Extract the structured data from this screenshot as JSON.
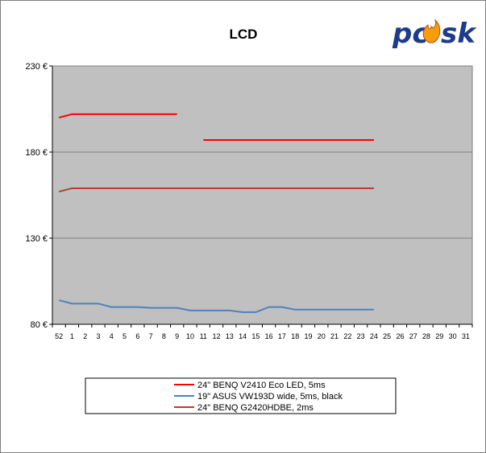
{
  "chart_data": {
    "type": "line",
    "title": "LCD",
    "xlabel": "",
    "ylabel": "",
    "categories": [
      "52",
      "1",
      "2",
      "3",
      "4",
      "5",
      "6",
      "7",
      "8",
      "9",
      "10",
      "11",
      "12",
      "13",
      "14",
      "15",
      "16",
      "17",
      "18",
      "19",
      "20",
      "21",
      "22",
      "23",
      "24",
      "25",
      "26",
      "27",
      "28",
      "29",
      "30",
      "31"
    ],
    "ylim": [
      80,
      230
    ],
    "yticks": [
      80,
      130,
      180,
      230
    ],
    "ytick_suffix": " €",
    "grid": true,
    "legend_position": "bottom",
    "series": [
      {
        "name": "24\" BENQ V2410 Eco LED, 5ms",
        "color": "#ff0000",
        "values": [
          200,
          202,
          202,
          202,
          202,
          202,
          202,
          202,
          202,
          202,
          null,
          187,
          187,
          187,
          187,
          187,
          187,
          187,
          187,
          187,
          187,
          187,
          187,
          187,
          187,
          null,
          null,
          null,
          null,
          null,
          null,
          null
        ]
      },
      {
        "name": "19\" ASUS VW193D wide, 5ms, black",
        "color": "#4f81bd",
        "values": [
          94,
          92,
          92,
          92,
          90,
          90,
          90,
          89.5,
          89.5,
          89.5,
          88,
          88,
          88,
          88,
          87,
          87,
          90,
          90,
          88.5,
          88.5,
          88.5,
          88.5,
          88.5,
          88.5,
          88.5,
          null,
          null,
          null,
          null,
          null,
          null,
          null
        ]
      },
      {
        "name": "24\" BENQ G2420HDBE, 2ms",
        "color": "#c0392b",
        "values": [
          157,
          159,
          159,
          159,
          159,
          159,
          159,
          159,
          159,
          159,
          159,
          159,
          159,
          159,
          159,
          159,
          159,
          159,
          159,
          159,
          159,
          159,
          159,
          159,
          159,
          null,
          null,
          null,
          null,
          null,
          null,
          null
        ]
      }
    ]
  },
  "logo": {
    "text": "pcosk",
    "brand_color": "#1e3a8a",
    "flame_color": "#f59e0b"
  }
}
